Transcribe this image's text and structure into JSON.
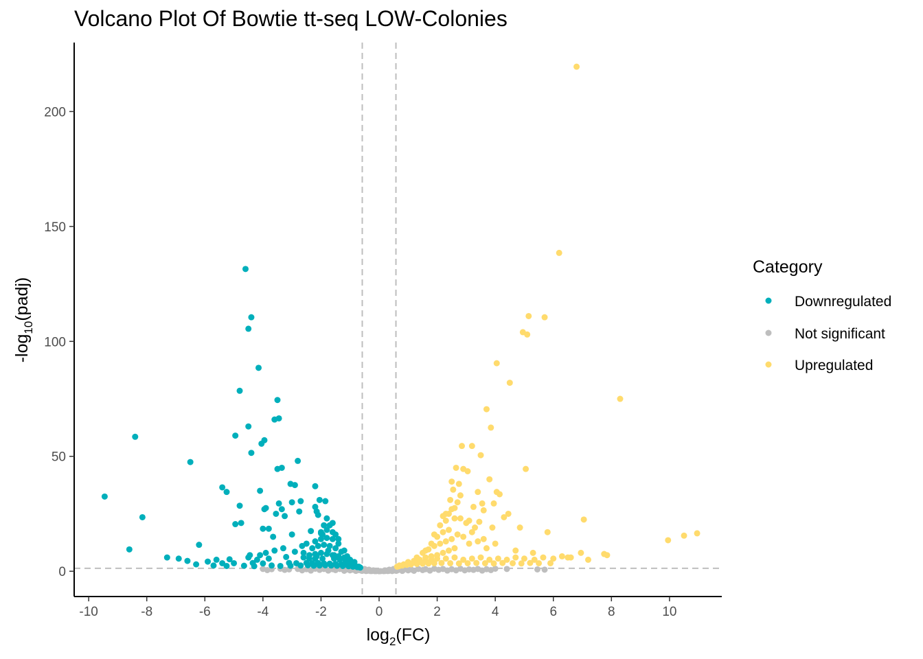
{
  "chart_data": {
    "type": "scatter",
    "title": "Volcano Plot Of Bowtie tt-seq LOW-Colonies",
    "xlabel": {
      "base": "log",
      "sub": "2",
      "rest": "(FC)"
    },
    "ylabel": {
      "pre": "-log",
      "sub": "10",
      "rest": "(padj)"
    },
    "xlim": [
      -10.5,
      11.8
    ],
    "ylim": [
      -11,
      230
    ],
    "x_ticks": [
      -10,
      -8,
      -6,
      -4,
      -2,
      0,
      2,
      4,
      6,
      8,
      10
    ],
    "y_ticks": [
      0,
      50,
      100,
      150,
      200
    ],
    "threshold_lines": {
      "x": [
        -0.58,
        0.58
      ],
      "y": [
        1.3
      ]
    },
    "grid": false,
    "legend": {
      "title": "Category",
      "position": "right",
      "entries": [
        "Downregulated",
        "Not significant",
        "Upregulated"
      ]
    },
    "colors": {
      "Downregulated": "#00AFBB",
      "Not significant": "#BEBEBE",
      "Upregulated": "#FFDB6D",
      "threshold": "#BEBEBE"
    },
    "series": [
      {
        "name": "Downregulated",
        "x": [
          -4.6,
          -4.4,
          -4.5,
          -4.15,
          -4.8,
          -3.5,
          -3.45,
          -3.6,
          -4.5,
          -3.95,
          -4.05,
          -4.95,
          -4.4,
          -8.4,
          -6.5,
          -2.8,
          -3.5,
          -3.35,
          -3.05,
          -2.2,
          -2.9,
          -9.45,
          -5.4,
          -5.25,
          -4.1,
          -3.45,
          -3.0,
          -2.7,
          -2.05,
          -1.85,
          -2.2,
          -4.8,
          -3.9,
          -3.95,
          -3.35,
          -2.75,
          -2.15,
          -3.55,
          -3.25,
          -2.1,
          -8.15,
          -4.75,
          -4.95,
          -3.8,
          -2.35,
          -1.95,
          -2.0,
          -6.2,
          -3.65,
          -3.0,
          -4.0,
          -8.6,
          -7.3,
          -6.9,
          -5.6,
          -5.15,
          -4.5,
          -4.2,
          -3.2,
          -3.8,
          -2.6,
          -2.4,
          -2.2,
          -6.6,
          -5.9,
          -5.4,
          -5.0,
          -4.35,
          -4.0,
          -3.1,
          -2.85,
          -2.5,
          -2.3,
          -2.1,
          -1.9,
          -1.7,
          -1.5,
          -1.3,
          -1.1,
          -0.95,
          -0.8,
          -0.7,
          -6.3,
          -5.7,
          -5.25,
          -4.65,
          -4.3,
          -3.7,
          -3.4,
          -3.05,
          -2.7,
          -2.45,
          -2.25,
          -2.05,
          -1.85,
          -1.65,
          -1.45,
          -1.25,
          -1.05,
          -0.9,
          -0.75,
          -0.65,
          -2.4,
          -2.2,
          -2.0,
          -1.8,
          -1.6,
          -1.4,
          -1.2,
          -1.0,
          -0.85,
          -2.3,
          -2.1,
          -1.9,
          -1.7,
          -1.5,
          -1.3,
          -1.1,
          -2.2,
          -2.0,
          -1.8,
          -1.6,
          -1.4,
          -1.2,
          -2.0,
          -1.8,
          -1.6,
          -1.4,
          -1.9,
          -1.7,
          -1.5,
          -1.8,
          -1.6,
          -2.6,
          -2.5,
          -3.3,
          -3.6,
          -3.9,
          -4.1,
          -4.45,
          -1.55,
          -1.35,
          -1.15,
          -0.98,
          -2.9,
          -2.65,
          -1.75,
          -1.55,
          -2.15,
          -1.95
        ],
        "y": [
          131.5,
          110.5,
          105.5,
          88.5,
          78.5,
          74.5,
          66.5,
          66,
          63,
          57,
          55.5,
          59,
          51.5,
          58.5,
          47.5,
          48,
          44.5,
          45,
          38,
          37,
          37.5,
          32.5,
          36.5,
          34.5,
          35,
          29.5,
          30,
          30.5,
          31,
          30.5,
          28,
          28.5,
          27.5,
          27,
          27,
          26,
          26,
          25,
          24,
          24.5,
          23.5,
          21,
          20.5,
          18.5,
          17.5,
          16,
          16.5,
          11.5,
          15,
          16,
          18.5,
          9.5,
          6,
          5.5,
          5,
          5.2,
          6,
          5,
          6.2,
          5.5,
          6,
          5.5,
          5.5,
          4.5,
          4.2,
          3.5,
          3.5,
          3.6,
          3.4,
          3.6,
          3.5,
          3.6,
          3.5,
          3.6,
          3.4,
          3.3,
          3.2,
          3.0,
          2.8,
          2.5,
          2.2,
          2.0,
          3.0,
          2.5,
          2.3,
          2.4,
          2.2,
          2.5,
          2.3,
          2.4,
          2.5,
          2.6,
          2.4,
          2.5,
          2.6,
          2.5,
          2.4,
          2.3,
          2.2,
          2.0,
          1.8,
          1.6,
          7,
          7.5,
          8,
          7.5,
          7,
          6.5,
          6,
          5,
          4,
          10,
          11,
          11.5,
          11,
          10,
          8.5,
          6.5,
          13,
          14,
          14.5,
          14,
          12,
          9,
          17,
          18,
          17,
          14,
          20,
          20,
          16,
          23,
          21,
          8,
          12,
          10,
          9,
          8,
          7,
          7,
          5.5,
          5,
          4.5,
          3.5,
          8.5,
          11,
          9,
          7,
          6.5,
          5.5
        ]
      },
      {
        "name": "Upregulated",
        "x": [
          6.8,
          6.2,
          5.15,
          5.7,
          4.95,
          5.1,
          4.05,
          4.5,
          8.3,
          3.7,
          3.85,
          2.85,
          3.2,
          3.5,
          5.05,
          3.8,
          2.65,
          2.9,
          3.05,
          4.05,
          2.5,
          2.75,
          3.4,
          4.15,
          2.55,
          2.8,
          3.55,
          3.95,
          4.45,
          2.45,
          2.7,
          3.25,
          3.6,
          4.3,
          7.05,
          2.3,
          2.6,
          3.1,
          3.45,
          3.9,
          4.85,
          5.8,
          10.95,
          10.5,
          9.95,
          7.75,
          7.85,
          6.95,
          6.6,
          6.3,
          6.0,
          5.65,
          5.35,
          5.0,
          4.7,
          4.4,
          4.1,
          3.8,
          3.5,
          3.2,
          2.9,
          2.6,
          2.3,
          2.0,
          1.8,
          1.6,
          1.4,
          1.2,
          1.0,
          0.85,
          0.7,
          0.62,
          5.9,
          5.5,
          5.2,
          4.9,
          4.6,
          4.25,
          3.95,
          3.65,
          3.35,
          3.05,
          2.75,
          2.45,
          2.15,
          1.9,
          1.7,
          1.5,
          1.3,
          1.1,
          0.95,
          0.8,
          0.68,
          2.2,
          2.4,
          2.6,
          2.0,
          1.8,
          1.6,
          1.4,
          1.2,
          1.0,
          2.3,
          2.5,
          2.1,
          1.9,
          1.7,
          1.5,
          1.3,
          2.4,
          2.2,
          2.0,
          1.8,
          1.6,
          2.3,
          2.1,
          1.9,
          2.4,
          2.2,
          2.5,
          2.6,
          2.8,
          3.0,
          3.3,
          3.6,
          4.0,
          4.7,
          5.3,
          6.5,
          7.2,
          2.7,
          2.9,
          3.2,
          3.4,
          3.1,
          3.7
        ],
        "y": [
          219.5,
          138.5,
          111,
          110.5,
          104,
          103,
          90.5,
          82,
          75,
          70.5,
          62.5,
          54.5,
          54.5,
          50.5,
          44.5,
          40,
          45,
          44.5,
          43.5,
          34.5,
          39,
          38,
          34.5,
          33.5,
          35.5,
          33,
          29.5,
          29.5,
          25,
          31,
          30,
          28,
          26.5,
          23.5,
          22.5,
          25,
          23,
          22,
          21.5,
          19,
          19,
          17,
          16.5,
          15.5,
          13.5,
          7.5,
          7.0,
          8,
          6,
          6.5,
          5.5,
          6,
          5,
          5.5,
          6,
          5,
          5.5,
          5,
          6,
          5.5,
          5,
          6,
          5.5,
          5.5,
          5,
          4.5,
          4.2,
          3.8,
          3.5,
          3.0,
          2.5,
          2.0,
          3.5,
          3.5,
          3.6,
          3.4,
          3.5,
          3.6,
          3.4,
          3.5,
          3.6,
          3.5,
          3.4,
          3.5,
          3.6,
          3.5,
          3.4,
          3.3,
          3.2,
          3.0,
          2.8,
          2.5,
          2.2,
          8,
          9,
          10,
          7,
          6.5,
          6,
          5,
          4.5,
          4,
          13,
          14,
          12,
          11,
          9.5,
          8,
          6,
          18,
          17,
          15,
          12,
          9,
          22,
          20,
          16,
          25,
          24,
          27,
          27.5,
          23,
          21,
          19,
          14,
          12,
          9,
          8,
          6,
          5,
          16,
          15,
          17,
          13,
          12,
          10
        ]
      },
      {
        "name": "Not significant",
        "x": [
          -4.0,
          -3.7,
          -3.4,
          -3.1,
          -2.8,
          -2.5,
          -2.2,
          -1.9,
          -1.6,
          -1.35,
          -1.1,
          -0.9,
          -0.7,
          -0.55,
          -0.4,
          -0.25,
          -0.1,
          0.05,
          0.2,
          0.35,
          0.5,
          0.65,
          0.85,
          1.1,
          1.35,
          1.6,
          1.9,
          2.2,
          2.5,
          2.8,
          3.1,
          3.4,
          3.7,
          4.0,
          4.4,
          5.45,
          5.7,
          -3.85,
          -3.25,
          -2.65,
          -2.05,
          -1.5,
          -1.0,
          -0.6,
          -0.3,
          0.0,
          0.3,
          0.6,
          1.0,
          1.5,
          2.05,
          2.65,
          3.25,
          3.85,
          -2.35,
          -1.75,
          -1.2,
          -0.8,
          -0.45,
          -0.15,
          0.15,
          0.45,
          0.8,
          1.2,
          1.75,
          2.35,
          2.95,
          3.55,
          -0.65,
          -0.5,
          -0.35,
          -0.2,
          0.2,
          0.35,
          0.5,
          0.6
        ],
        "y": [
          1.0,
          0.9,
          1.1,
          0.8,
          1.0,
          0.9,
          1.1,
          1.0,
          0.9,
          1.0,
          0.8,
          0.7,
          0.5,
          0.3,
          0.2,
          0.1,
          0.05,
          0.05,
          0.1,
          0.2,
          0.3,
          0.5,
          0.7,
          0.8,
          1.0,
          0.9,
          1.1,
          1.0,
          0.9,
          1.1,
          0.8,
          1.0,
          0.9,
          1.1,
          1.0,
          0.8,
          0.7,
          0.5,
          0.6,
          0.4,
          0.6,
          0.5,
          0.4,
          0.2,
          0.1,
          0.0,
          0.1,
          0.2,
          0.4,
          0.5,
          0.6,
          0.4,
          0.6,
          0.5,
          0.3,
          0.3,
          0.2,
          0.15,
          0.1,
          0.05,
          0.05,
          0.1,
          0.15,
          0.2,
          0.3,
          0.3,
          0.4,
          0.3,
          1.2,
          1.0,
          0.7,
          0.4,
          0.4,
          0.7,
          1.0,
          1.2
        ]
      }
    ]
  }
}
